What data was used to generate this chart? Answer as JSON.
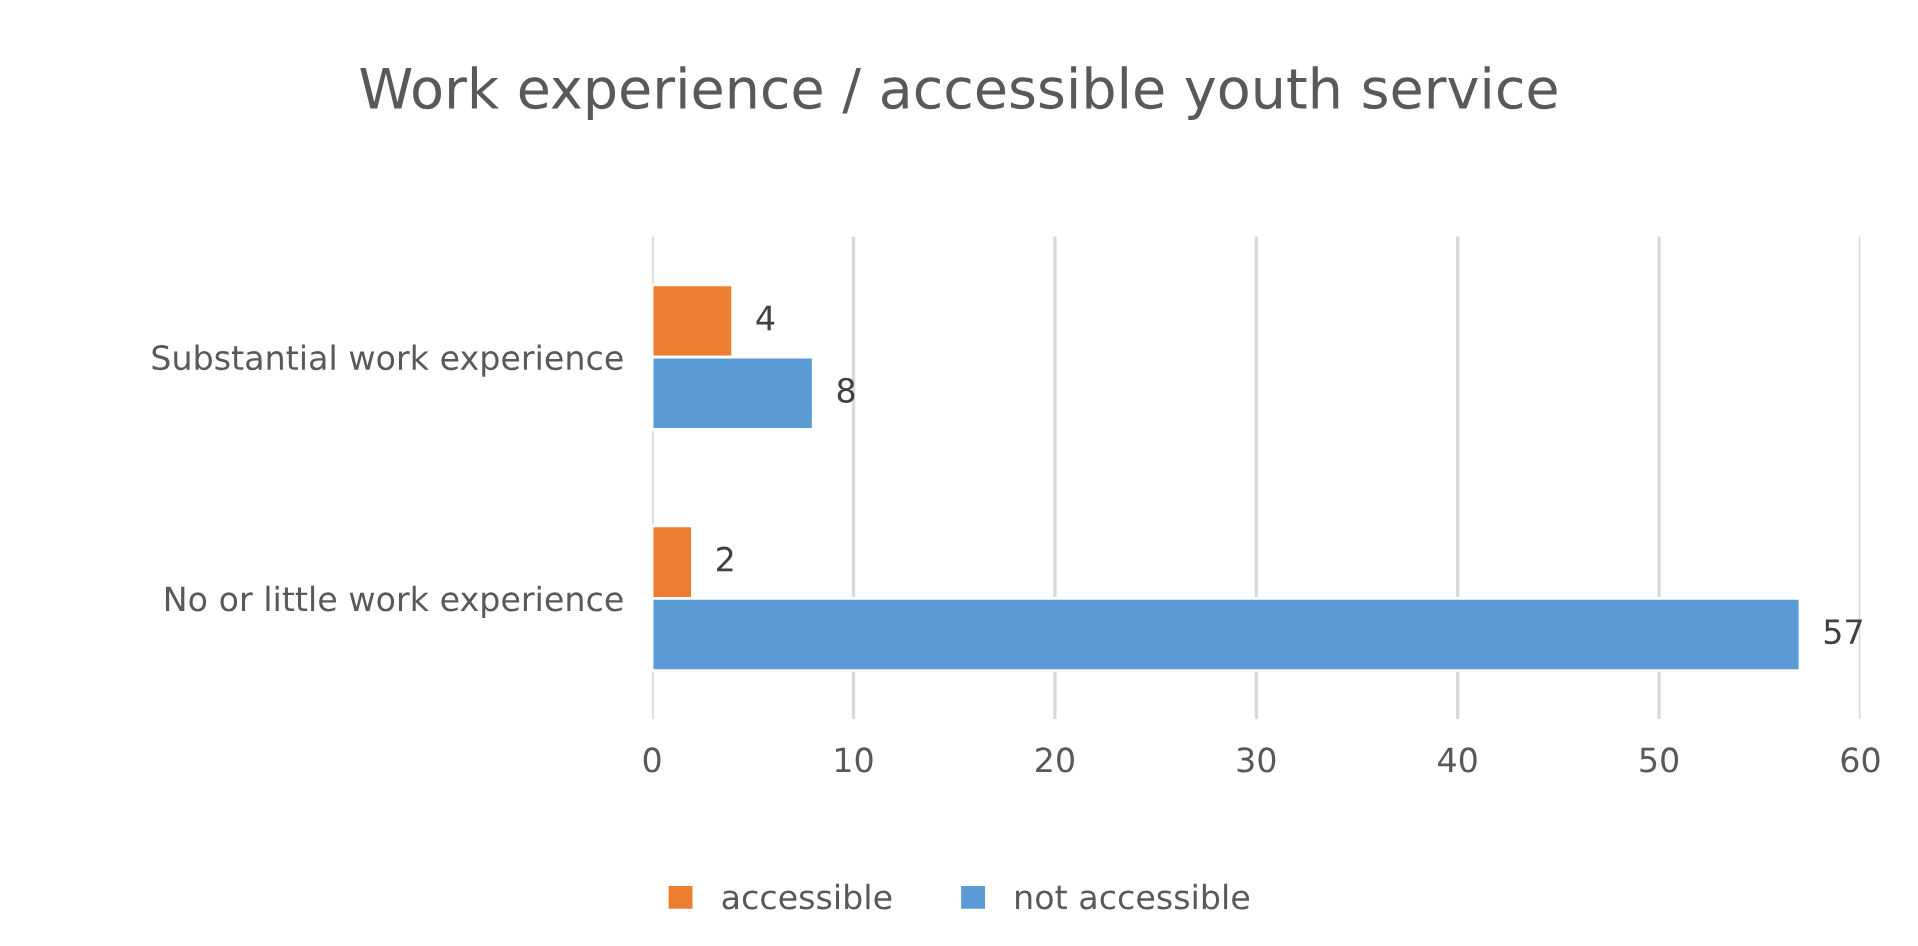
{
  "chart_data": {
    "type": "bar",
    "orientation": "horizontal",
    "title": "Work experience / accessible youth service",
    "categories": [
      "Substantial work experience",
      "No or little work experience"
    ],
    "series": [
      {
        "name": "accessible",
        "color": "#ed7d31",
        "values": [
          4,
          2
        ]
      },
      {
        "name": "not accessible",
        "color": "#5b9bd5",
        "values": [
          8,
          57
        ]
      }
    ],
    "xlim": [
      0,
      60
    ],
    "xticks": [
      0,
      10,
      20,
      30,
      40,
      50,
      60
    ],
    "grid": "x",
    "legend": "bottom",
    "data_labels": true
  }
}
